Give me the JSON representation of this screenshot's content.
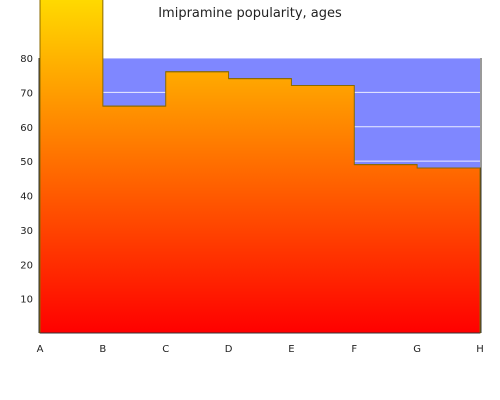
{
  "chart_data": {
    "type": "area",
    "title": "Imipramine popularity, ages",
    "xlabel": "",
    "ylabel": "",
    "categories": [
      "A",
      "B",
      "C",
      "D",
      "E",
      "F",
      "G",
      "H"
    ],
    "step": true,
    "band": {
      "from": 0,
      "to": 80,
      "color": "#7f87ff"
    },
    "values": [
      100,
      66,
      76,
      74,
      72,
      49,
      48,
      48
    ],
    "ylim": [
      0,
      80
    ],
    "yticks": [
      10,
      20,
      30,
      40,
      50,
      60,
      70,
      80
    ],
    "grid": true,
    "colors": {
      "fill_bottom": "#ff0000",
      "fill_top": "#ffe000",
      "outline": "#8a6a00",
      "grid": "#ffffff",
      "highlight_band": "#a3adff"
    }
  }
}
